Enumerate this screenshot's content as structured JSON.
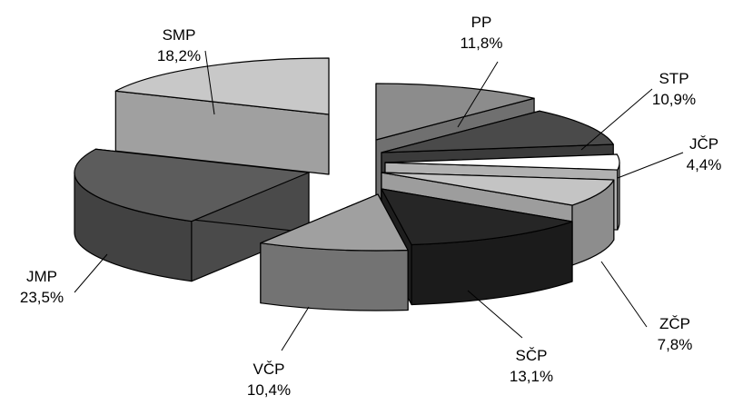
{
  "chart_data": {
    "type": "pie",
    "style": "3d-exploded",
    "title": "",
    "legend": "none",
    "slices": [
      {
        "label": "PP",
        "value": 11.8,
        "value_label": "11,8%",
        "color": "#8c8c8c"
      },
      {
        "label": "STP",
        "value": 10.9,
        "value_label": "10,9%",
        "color": "#4a4a4a"
      },
      {
        "label": "JČP",
        "value": 4.4,
        "value_label": "4,4%",
        "color": "#ffffff"
      },
      {
        "label": "ZČP",
        "value": 7.8,
        "value_label": "7,8%",
        "color": "#c4c4c4"
      },
      {
        "label": "SČP",
        "value": 13.1,
        "value_label": "13,1%",
        "color": "#262626"
      },
      {
        "label": "VČP",
        "value": 10.4,
        "value_label": "10,4%",
        "color": "#a0a0a0"
      },
      {
        "label": "JMP",
        "value": 23.5,
        "value_label": "23,5%",
        "color": "#5c5c5c"
      },
      {
        "label": "SMP",
        "value": 18.2,
        "value_label": "18,2%",
        "color": "#c8c8c8"
      }
    ]
  }
}
